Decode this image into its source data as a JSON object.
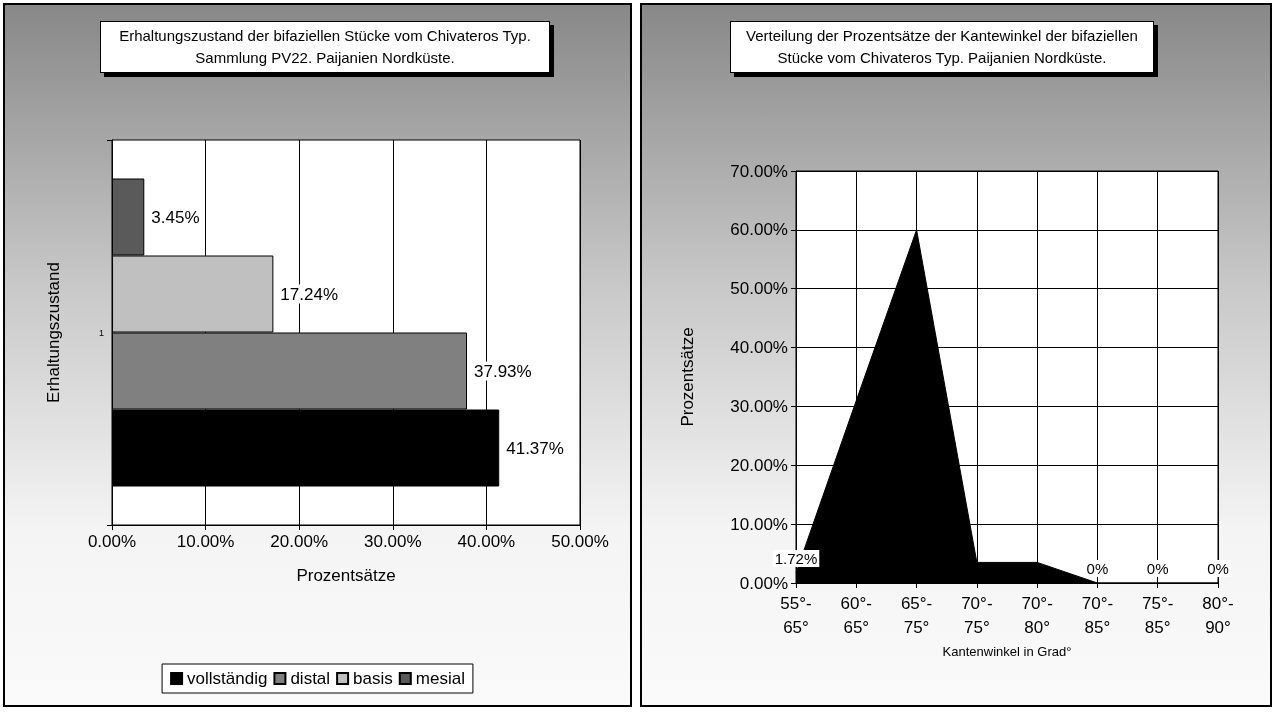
{
  "chart_data": [
    {
      "type": "bar",
      "orientation": "horizontal",
      "title": "Erhaltungszustand der bifaziellen Stücke vom Chivateros Typ. Sammlung PV22. Paijanien Nordküste.",
      "xlabel": "Prozentsätze",
      "ylabel": "Erhaltungszustand",
      "categories": [
        "1"
      ],
      "series": [
        {
          "name": "vollständig",
          "color": "#000000",
          "values": [
            41.37
          ]
        },
        {
          "name": "distal",
          "color": "#808080",
          "values": [
            37.93
          ]
        },
        {
          "name": "basis",
          "color": "#c0c0c0",
          "values": [
            17.24
          ]
        },
        {
          "name": "mesial",
          "color": "#5a5a5a",
          "values": [
            3.45
          ]
        }
      ],
      "xlim": [
        0,
        50
      ],
      "xticks": [
        {
          "value": 0,
          "label": "0.00%"
        },
        {
          "value": 10,
          "label": "10.00%"
        },
        {
          "value": 20,
          "label": "20.00%"
        },
        {
          "value": 30,
          "label": "30.00%"
        },
        {
          "value": 40,
          "label": "40.00%"
        },
        {
          "value": 50,
          "label": "50.00%"
        }
      ],
      "value_labels": [
        "41.37%",
        "37.93%",
        "17.24%",
        "3.45%"
      ],
      "grid": "x",
      "legend": "bottom"
    },
    {
      "type": "area",
      "title": "Verteilung der Prozentsätze der Kantewinkel der bifaziellen Stücke vom Chivateros Typ. Paijanien Nordküste.",
      "xlabel": "Kantenwinkel in Grad°",
      "ylabel": "Prozentsätze",
      "categories": [
        "55°-65°",
        "60°-65°",
        "65°-75°",
        "70°-75°",
        "70°-80°",
        "70°-85°",
        "75°-85°",
        "80°-90°"
      ],
      "values": [
        1.72,
        31,
        60,
        3.5,
        3.5,
        0,
        0,
        0
      ],
      "color": "#000000",
      "value_labels": [
        "1.72%",
        null,
        null,
        null,
        null,
        "0%",
        "0%",
        "0%"
      ],
      "ylim": [
        0,
        70
      ],
      "yticks": [
        {
          "value": 0,
          "label": "0.00%"
        },
        {
          "value": 10,
          "label": "10.00%"
        },
        {
          "value": 20,
          "label": "20.00%"
        },
        {
          "value": 30,
          "label": "30.00%"
        },
        {
          "value": 40,
          "label": "40.00%"
        },
        {
          "value": 50,
          "label": "50.00%"
        },
        {
          "value": 60,
          "label": "60.00%"
        },
        {
          "value": 70,
          "label": "70.00%"
        }
      ],
      "grid": true,
      "marker": "none"
    }
  ]
}
